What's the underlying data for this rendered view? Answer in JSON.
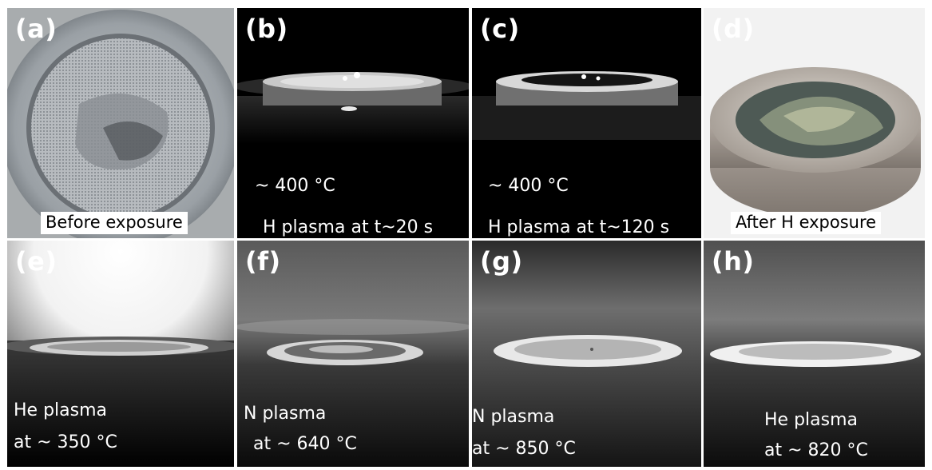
{
  "panels": [
    {
      "label": "(a)",
      "captions": [
        "Before exposure"
      ]
    },
    {
      "label": "(b)",
      "captions": [
        "~ 400 °C",
        "H plasma at t~20 s"
      ]
    },
    {
      "label": "(c)",
      "captions": [
        "~ 400 °C",
        "H plasma at t~120 s"
      ]
    },
    {
      "label": "(d)",
      "captions": [
        "After H exposure"
      ]
    },
    {
      "label": "(e)",
      "captions": [
        "He plasma",
        "at ~ 350 °C"
      ]
    },
    {
      "label": "(f)",
      "captions": [
        "N plasma",
        "at ~ 640 °C"
      ]
    },
    {
      "label": "(g)",
      "captions": [
        "N plasma",
        "at ~ 850 °C"
      ]
    },
    {
      "label": "(h)",
      "captions": [
        "He plasma",
        "at ~ 820 °C"
      ]
    }
  ]
}
